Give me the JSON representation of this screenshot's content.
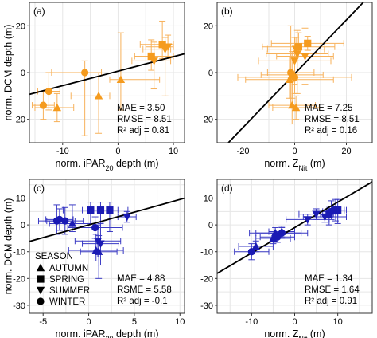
{
  "axis_labels": {
    "ylabel": "norm. DCM depth (m)",
    "xlabel_ipar": {
      "main": "norm. iPAR",
      "sub": "20",
      "tail": " depth (m)"
    },
    "xlabel_znit": {
      "main": "norm. Z",
      "sub": "Nit",
      "tail": " (m)"
    }
  },
  "legend": {
    "title": "SEASON",
    "items": [
      {
        "name": "AUTUMN",
        "shape": "triangle-up"
      },
      {
        "name": "SPRING",
        "shape": "square"
      },
      {
        "name": "SUMMER",
        "shape": "triangle-down"
      },
      {
        "name": "WINTER",
        "shape": "circle"
      }
    ]
  },
  "colors": {
    "orange": "#f59b1e",
    "orange_err": "#f7b15a",
    "blue": "#1a1ab4",
    "blue_err": "#3a3ac4",
    "fit_line": "#000000",
    "grid": "#e6e6e6",
    "panel_bg": "#ffffff",
    "border": "#333333"
  },
  "chart_data": [
    {
      "panel": "(a)",
      "type": "scatter",
      "title": "",
      "xlabel_key": "xlabel_ipar",
      "show_ylabel": true,
      "xlim": [
        -16,
        12
      ],
      "ylim": [
        -30,
        30
      ],
      "xticks": [
        -10,
        0,
        10
      ],
      "yticks": [
        -20,
        0,
        20
      ],
      "grid": true,
      "color": "orange",
      "fit": {
        "slope": 0.62,
        "intercept": 0.6
      },
      "stats": [
        "MAE = 3.50",
        "RMSE = 8.51",
        "R² adj = 0.81"
      ],
      "points": [
        {
          "x": -13.5,
          "y": -14,
          "season": "WINTER",
          "ex": [
            -2,
            2
          ],
          "ey": [
            -6,
            6
          ]
        },
        {
          "x": -12.5,
          "y": -8,
          "season": "WINTER",
          "ex": [
            -2,
            2
          ],
          "ey": [
            -8,
            8
          ]
        },
        {
          "x": -11,
          "y": -15,
          "season": "AUTUMN",
          "ex": [
            -4,
            3
          ],
          "ey": [
            -6,
            6
          ]
        },
        {
          "x": -6,
          "y": 0,
          "season": "WINTER",
          "ex": [
            -6,
            3
          ],
          "ey": [
            -27,
            5
          ]
        },
        {
          "x": -3.5,
          "y": -10,
          "season": "AUTUMN",
          "ex": [
            -5,
            2
          ],
          "ey": [
            -16,
            10
          ]
        },
        {
          "x": 0.5,
          "y": -3,
          "season": "AUTUMN",
          "ex": [
            -2,
            7
          ],
          "ey": [
            -13,
            20
          ]
        },
        {
          "x": 6,
          "y": 7,
          "season": "SPRING",
          "ex": [
            -3,
            4
          ],
          "ey": [
            -6,
            7
          ]
        },
        {
          "x": 6.5,
          "y": 5,
          "season": "SUMMER",
          "ex": [
            -4,
            3
          ],
          "ey": [
            -12,
            8
          ]
        },
        {
          "x": 8,
          "y": 12,
          "season": "SPRING",
          "ex": [
            -4,
            2
          ],
          "ey": [
            -6,
            10
          ]
        },
        {
          "x": 8.5,
          "y": 10,
          "season": "SUMMER",
          "ex": [
            -4,
            1
          ],
          "ey": [
            -20,
            5
          ]
        },
        {
          "x": 9,
          "y": 11,
          "season": "SUMMER",
          "ex": [
            -4,
            1
          ],
          "ey": [
            -5,
            5
          ]
        }
      ]
    },
    {
      "panel": "(b)",
      "type": "scatter",
      "title": "",
      "xlabel_key": "xlabel_znit",
      "show_ylabel": false,
      "xlim": [
        -30,
        30
      ],
      "ylim": [
        -30,
        30
      ],
      "xticks": [
        -20,
        0,
        20
      ],
      "yticks": [
        -20,
        0,
        20
      ],
      "grid": true,
      "color": "orange",
      "fit": {
        "slope": 1.15,
        "intercept": -0.5
      },
      "stats": [
        "MAE = 7.25",
        "RMSE = 8.51",
        "R² adj = 0.16"
      ],
      "points": [
        {
          "x": -1.5,
          "y": 0,
          "season": "WINTER",
          "ex": [
            -9,
            9
          ],
          "ey": [
            -15,
            20
          ]
        },
        {
          "x": -1,
          "y": -1,
          "season": "WINTER",
          "ex": [
            -12,
            12
          ],
          "ey": [
            -10,
            10
          ]
        },
        {
          "x": -2,
          "y": -3,
          "season": "AUTUMN",
          "ex": [
            -17,
            17
          ],
          "ey": [
            -8,
            10
          ]
        },
        {
          "x": -1,
          "y": -14,
          "season": "AUTUMN",
          "ex": [
            -9,
            9
          ],
          "ey": [
            -8,
            10
          ]
        },
        {
          "x": 0.5,
          "y": -15,
          "season": "AUTUMN",
          "ex": [
            -9,
            9
          ],
          "ey": [
            -5,
            5
          ]
        },
        {
          "x": 0,
          "y": -2,
          "season": "WINTER",
          "ex": [
            -22,
            22
          ],
          "ey": [
            -7,
            7
          ]
        },
        {
          "x": 0,
          "y": 5,
          "season": "SUMMER",
          "ex": [
            -14,
            14
          ],
          "ey": [
            -10,
            10
          ]
        },
        {
          "x": 0.5,
          "y": 10,
          "season": "SUMMER",
          "ex": [
            -11,
            11
          ],
          "ey": [
            -5,
            5
          ]
        },
        {
          "x": 1,
          "y": 8,
          "season": "SUMMER",
          "ex": [
            -12,
            12
          ],
          "ey": [
            -17,
            10
          ]
        },
        {
          "x": 1.5,
          "y": 11,
          "season": "SPRING",
          "ex": [
            -14,
            14
          ],
          "ey": [
            -4,
            6
          ]
        },
        {
          "x": 5,
          "y": 12.5,
          "season": "SPRING",
          "ex": [
            -14,
            14
          ],
          "ey": [
            -3,
            3
          ]
        },
        {
          "x": 4,
          "y": 7,
          "season": "SUMMER",
          "ex": [
            -11,
            11
          ],
          "ey": [
            -12,
            12
          ]
        }
      ]
    },
    {
      "panel": "(c)",
      "type": "scatter",
      "title": "",
      "xlabel_key": "xlabel_ipar",
      "show_ylabel": true,
      "xlim": [
        -6.5,
        10.5
      ],
      "ylim": [
        -33,
        17
      ],
      "xticks": [
        -5,
        0,
        5,
        10
      ],
      "yticks": [
        -30,
        -20,
        -10,
        0,
        10
      ],
      "grid": true,
      "color": "blue",
      "fit": {
        "slope": 0.95,
        "intercept": 0.0
      },
      "stats": [
        "MAE = 4.88",
        "RSME = 5.58",
        "R² adj = -0.1"
      ],
      "points": [
        {
          "x": -3.5,
          "y": 1.5,
          "season": "WINTER",
          "ex": [
            -2,
            2
          ],
          "ey": [
            -5,
            6
          ]
        },
        {
          "x": -3.2,
          "y": 2,
          "season": "WINTER",
          "ex": [
            -1.5,
            1.5
          ],
          "ey": [
            -4,
            4
          ]
        },
        {
          "x": -2.6,
          "y": 1.5,
          "season": "WINTER",
          "ex": [
            -2,
            2
          ],
          "ey": [
            -5,
            5
          ]
        },
        {
          "x": -1.8,
          "y": 0.5,
          "season": "AUTUMN",
          "ex": [
            -2.5,
            2.5
          ],
          "ey": [
            -3,
            7
          ]
        },
        {
          "x": 0.2,
          "y": 5.5,
          "season": "SPRING",
          "ex": [
            -3,
            3
          ],
          "ey": [
            -5,
            3
          ]
        },
        {
          "x": 1.3,
          "y": 5.5,
          "season": "SPRING",
          "ex": [
            -2,
            2
          ],
          "ey": [
            -5,
            3
          ]
        },
        {
          "x": 2.3,
          "y": 5.5,
          "season": "SPRING",
          "ex": [
            -2,
            2
          ],
          "ey": [
            -8,
            3
          ]
        },
        {
          "x": 0.7,
          "y": -1,
          "season": "WINTER",
          "ex": [
            -3,
            3
          ],
          "ey": [
            -4,
            4
          ]
        },
        {
          "x": 1,
          "y": -6,
          "season": "SUMMER",
          "ex": [
            -2.5,
            2.5
          ],
          "ey": [
            -6,
            6
          ]
        },
        {
          "x": 1.3,
          "y": -7,
          "season": "SUMMER",
          "ex": [
            -2,
            2
          ],
          "ey": [
            -8,
            8
          ]
        },
        {
          "x": 0.8,
          "y": -9.5,
          "season": "AUTUMN",
          "ex": [
            -3,
            3
          ],
          "ey": [
            -4,
            6
          ]
        },
        {
          "x": 1.1,
          "y": -10,
          "season": "AUTUMN",
          "ex": [
            -2,
            2
          ],
          "ey": [
            -10,
            6
          ]
        },
        {
          "x": 4.2,
          "y": 3,
          "season": "SUMMER",
          "ex": [
            -1,
            1
          ],
          "ey": [
            -2,
            2
          ]
        }
      ]
    },
    {
      "panel": "(d)",
      "type": "scatter",
      "title": "",
      "xlabel_key": "xlabel_znit",
      "show_ylabel": false,
      "xlim": [
        -18,
        18
      ],
      "ylim": [
        -33,
        17
      ],
      "xticks": [
        -10,
        0,
        10
      ],
      "yticks": [
        -30,
        -20,
        -10,
        0,
        10
      ],
      "grid": true,
      "color": "blue",
      "fit": {
        "slope": 0.95,
        "intercept": -1.0
      },
      "stats": [
        "MAE = 1.34",
        "RMSE = 1.64",
        "R² adj = 0.91"
      ],
      "points": [
        {
          "x": -10,
          "y": -10,
          "season": "WINTER",
          "ex": [
            -4,
            4
          ],
          "ey": [
            -3,
            3
          ]
        },
        {
          "x": -9,
          "y": -8,
          "season": "AUTUMN",
          "ex": [
            -4,
            4
          ],
          "ey": [
            -2,
            2
          ]
        },
        {
          "x": -5,
          "y": -5,
          "season": "AUTUMN",
          "ex": [
            -4,
            4
          ],
          "ey": [
            -2,
            2
          ]
        },
        {
          "x": -4,
          "y": -4.5,
          "season": "WINTER",
          "ex": [
            -4,
            4
          ],
          "ey": [
            -2,
            2
          ]
        },
        {
          "x": -4.5,
          "y": -3,
          "season": "AUTUMN",
          "ex": [
            -6,
            6
          ],
          "ey": [
            -2,
            2
          ]
        },
        {
          "x": -3,
          "y": -3,
          "season": "WINTER",
          "ex": [
            -6,
            6
          ],
          "ey": [
            -2,
            2
          ]
        },
        {
          "x": -3,
          "y": -2.5,
          "season": "AUTUMN",
          "ex": [
            -3,
            3
          ],
          "ey": [
            -2,
            2
          ]
        },
        {
          "x": 3,
          "y": 2,
          "season": "SUMMER",
          "ex": [
            -5,
            5
          ],
          "ey": [
            -2,
            2
          ]
        },
        {
          "x": 5,
          "y": 4,
          "season": "SUMMER",
          "ex": [
            -4,
            4
          ],
          "ey": [
            -2,
            2
          ]
        },
        {
          "x": 7,
          "y": 3,
          "season": "SUMMER",
          "ex": [
            -5,
            5
          ],
          "ey": [
            -2,
            2
          ]
        },
        {
          "x": 8,
          "y": 4,
          "season": "SPRING",
          "ex": [
            -2,
            2
          ],
          "ey": [
            -4,
            3
          ]
        },
        {
          "x": 8.5,
          "y": 5,
          "season": "WINTER",
          "ex": [
            -2,
            2
          ],
          "ey": [
            -3,
            4
          ]
        },
        {
          "x": 9.5,
          "y": 5.5,
          "season": "SPRING",
          "ex": [
            -2,
            2
          ],
          "ey": [
            -4,
            4
          ]
        },
        {
          "x": 10,
          "y": 5.5,
          "season": "SPRING",
          "ex": [
            -2,
            2
          ],
          "ey": [
            -5,
            4
          ]
        }
      ]
    }
  ]
}
